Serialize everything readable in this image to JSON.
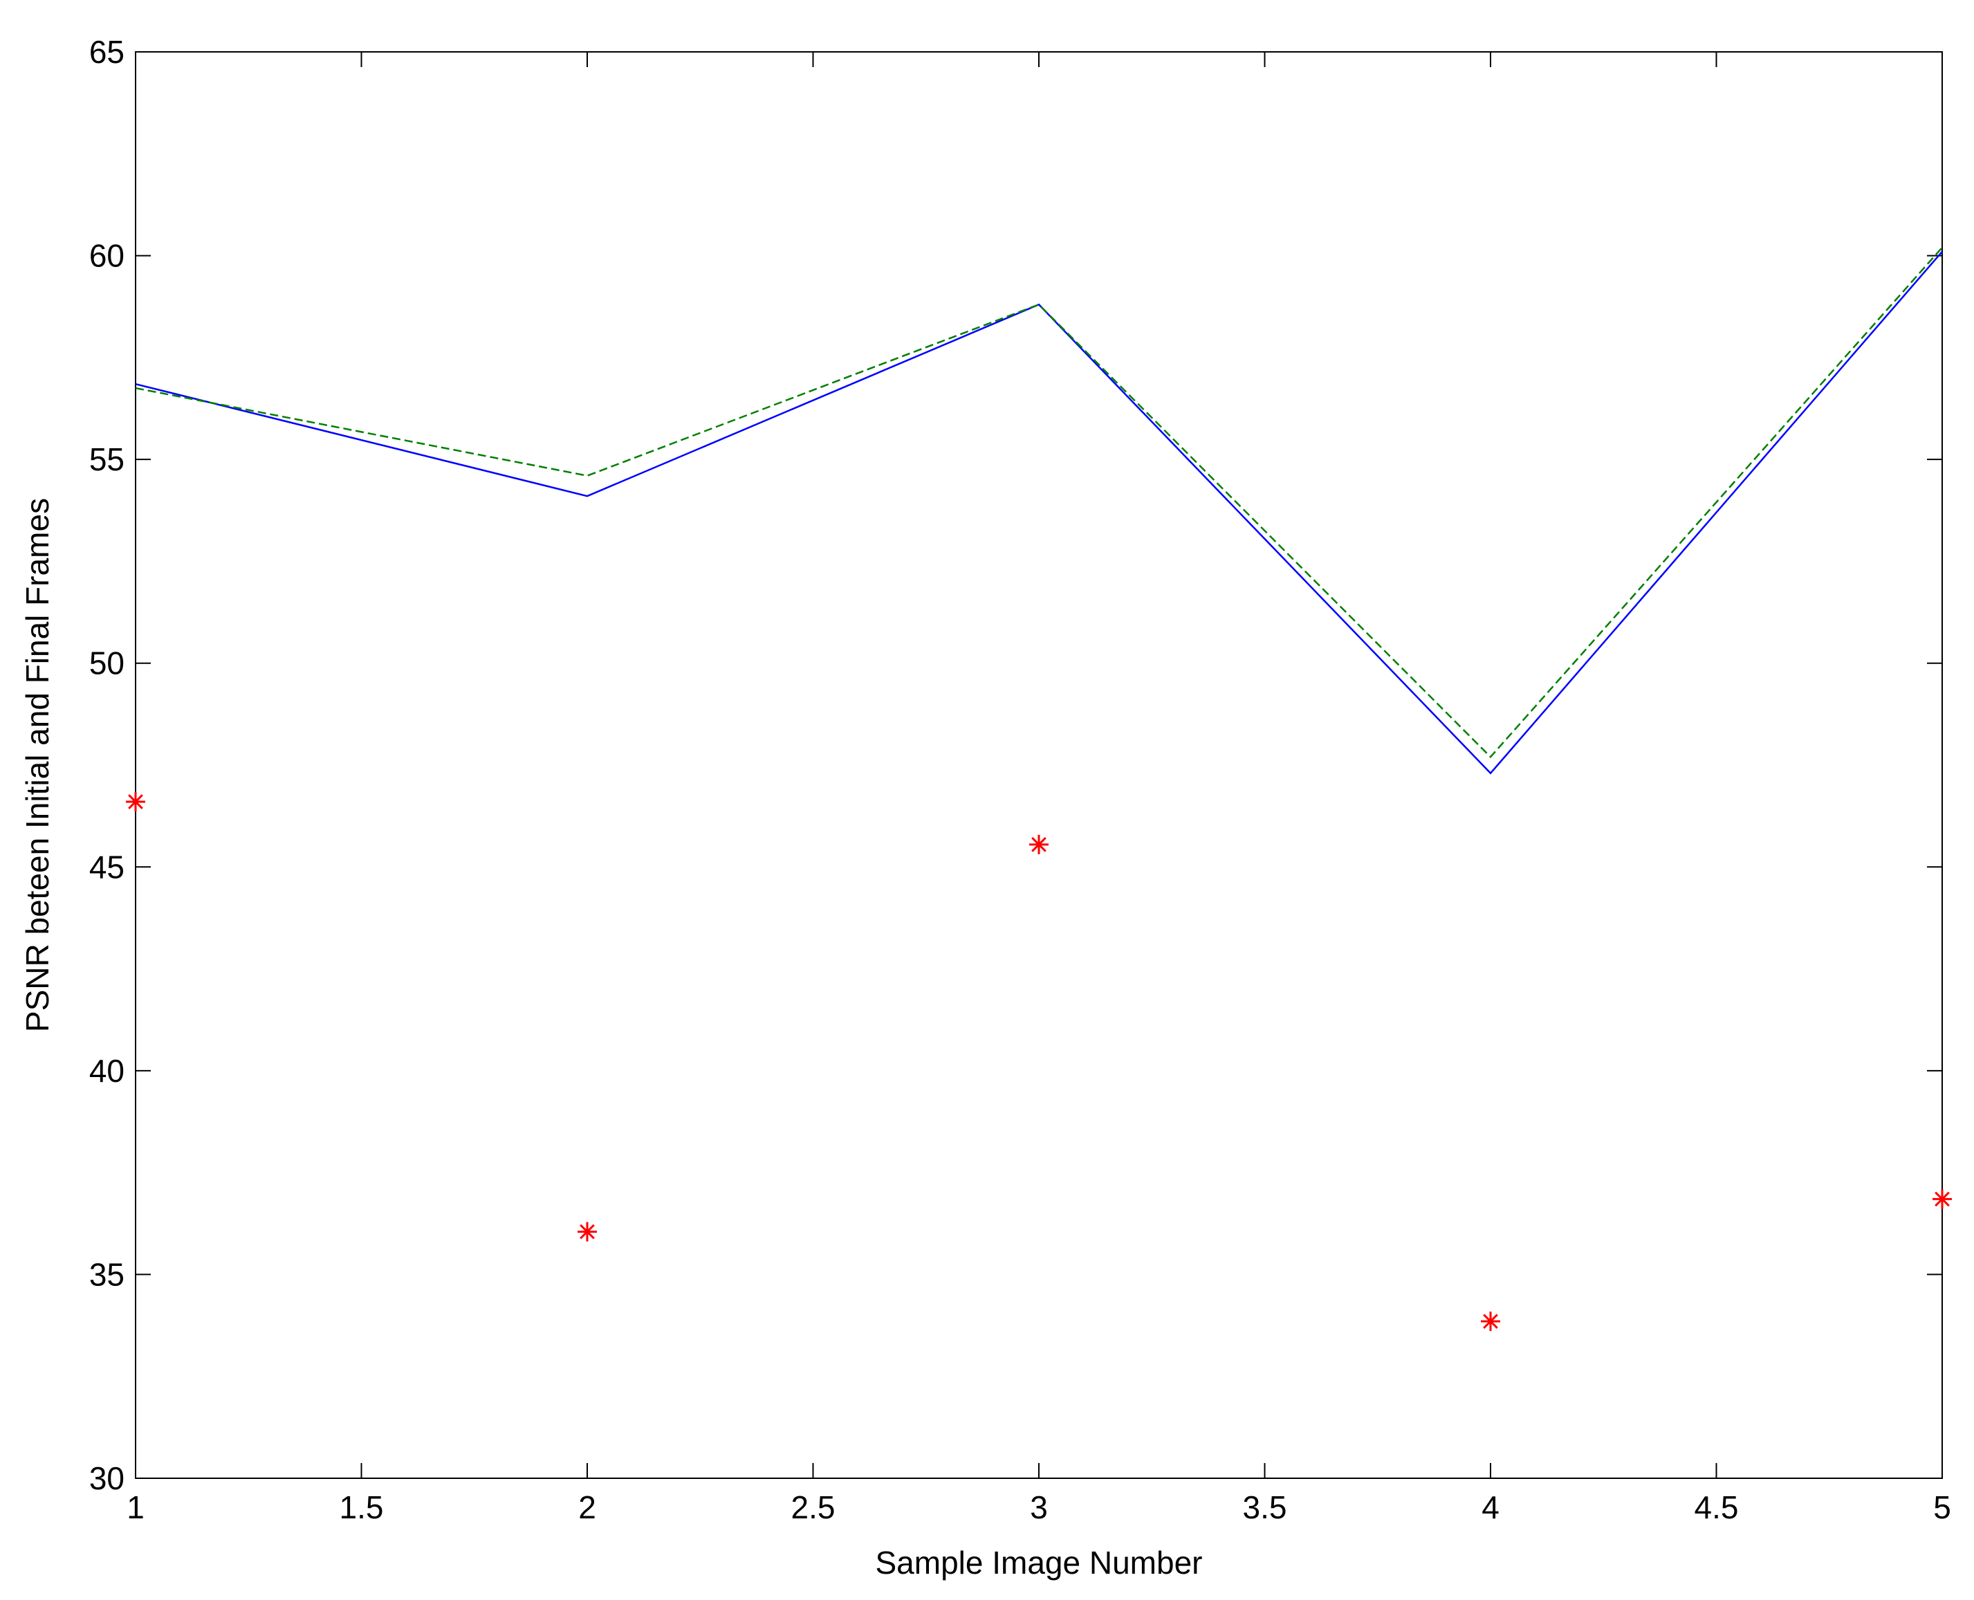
{
  "chart_data": {
    "type": "line",
    "xlabel": "Sample Image Number",
    "ylabel": "PSNR beteen Initial and Final Frames",
    "x": [
      1,
      2,
      3,
      4,
      5
    ],
    "series": [
      {
        "color": "#0000ff",
        "linestyle": "solid",
        "marker": "none",
        "values": [
          56.85,
          54.1,
          58.8,
          47.3,
          60.1
        ]
      },
      {
        "color": "#007f00",
        "linestyle": "dashed",
        "marker": "none",
        "values": [
          56.75,
          54.6,
          58.8,
          47.7,
          60.2
        ]
      },
      {
        "color": "#ff0000",
        "linestyle": "none",
        "marker": "*",
        "values": [
          46.6,
          36.05,
          45.55,
          33.85,
          36.85
        ]
      }
    ],
    "xlim": [
      1,
      5
    ],
    "xticks": [
      1,
      1.5,
      2,
      2.5,
      3,
      3.5,
      4,
      4.5,
      5
    ],
    "ylim": [
      30,
      65
    ],
    "yticks": [
      30,
      35,
      40,
      45,
      50,
      55,
      60,
      65
    ],
    "grid": false
  }
}
